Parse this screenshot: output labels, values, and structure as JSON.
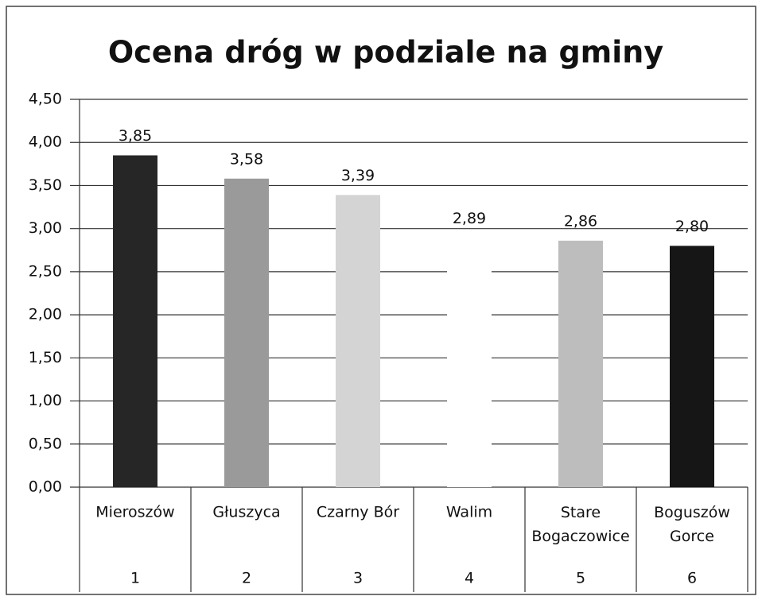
{
  "chart_data": {
    "type": "bar",
    "title": "Ocena dróg w podziale na gminy",
    "categories": [
      "Mieroszów",
      "Głuszyca",
      "Czarny Bór",
      "Walim",
      "Stare Bogaczowice",
      "Boguszów Gorce"
    ],
    "category_numbers": [
      "1",
      "2",
      "3",
      "4",
      "5",
      "6"
    ],
    "values": [
      3.85,
      3.58,
      3.39,
      2.89,
      2.86,
      2.8
    ],
    "value_labels": [
      "3,85",
      "3,58",
      "3,39",
      "2,89",
      "2,86",
      "2,80"
    ],
    "colors": [
      "#262626",
      "#9a9a9a",
      "#d4d4d4",
      "#ffffff",
      "#bdbdbd",
      "#161616"
    ],
    "ylim": [
      0,
      4.5
    ],
    "yticks": [
      {
        "value": 0,
        "label": "0,00"
      },
      {
        "value": 0.5,
        "label": "0,50"
      },
      {
        "value": 1,
        "label": "1,00"
      },
      {
        "value": 1.5,
        "label": "1,50"
      },
      {
        "value": 2,
        "label": "2,00"
      },
      {
        "value": 2.5,
        "label": "2,50"
      },
      {
        "value": 3,
        "label": "3,00"
      },
      {
        "value": 3.5,
        "label": "3,50"
      },
      {
        "value": 4,
        "label": "4,00"
      },
      {
        "value": 4.5,
        "label": "4,50"
      }
    ],
    "grid": true
  }
}
